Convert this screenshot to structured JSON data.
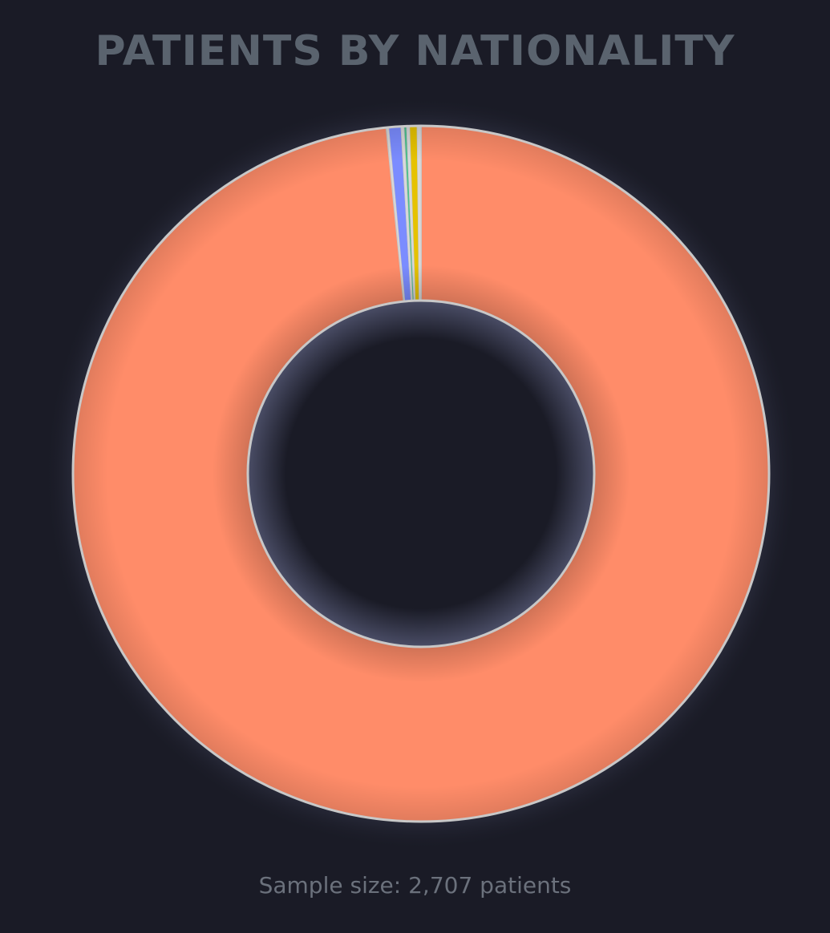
{
  "chart_data": {
    "type": "pie",
    "variant": "donut",
    "title": "PATIENTS BY NATIONALITY",
    "slices": [
      {
        "value": 2664,
        "color": "#ff8c69"
      },
      {
        "value": 3,
        "color": "#d9d9d9"
      },
      {
        "value": 15,
        "color": "#7b8cff"
      },
      {
        "value": 4,
        "color": "#d9d9d9"
      },
      {
        "value": 3,
        "color": "#4fbf8f"
      },
      {
        "value": 4,
        "color": "#d9d9d9"
      },
      {
        "value": 9,
        "color": "#e6c200"
      },
      {
        "value": 5,
        "color": "#d9d9d9"
      }
    ],
    "start_angle_deg": 0,
    "direction": "clockwise",
    "legend": "none",
    "footnote": "Sample size: 2,707 patients"
  }
}
